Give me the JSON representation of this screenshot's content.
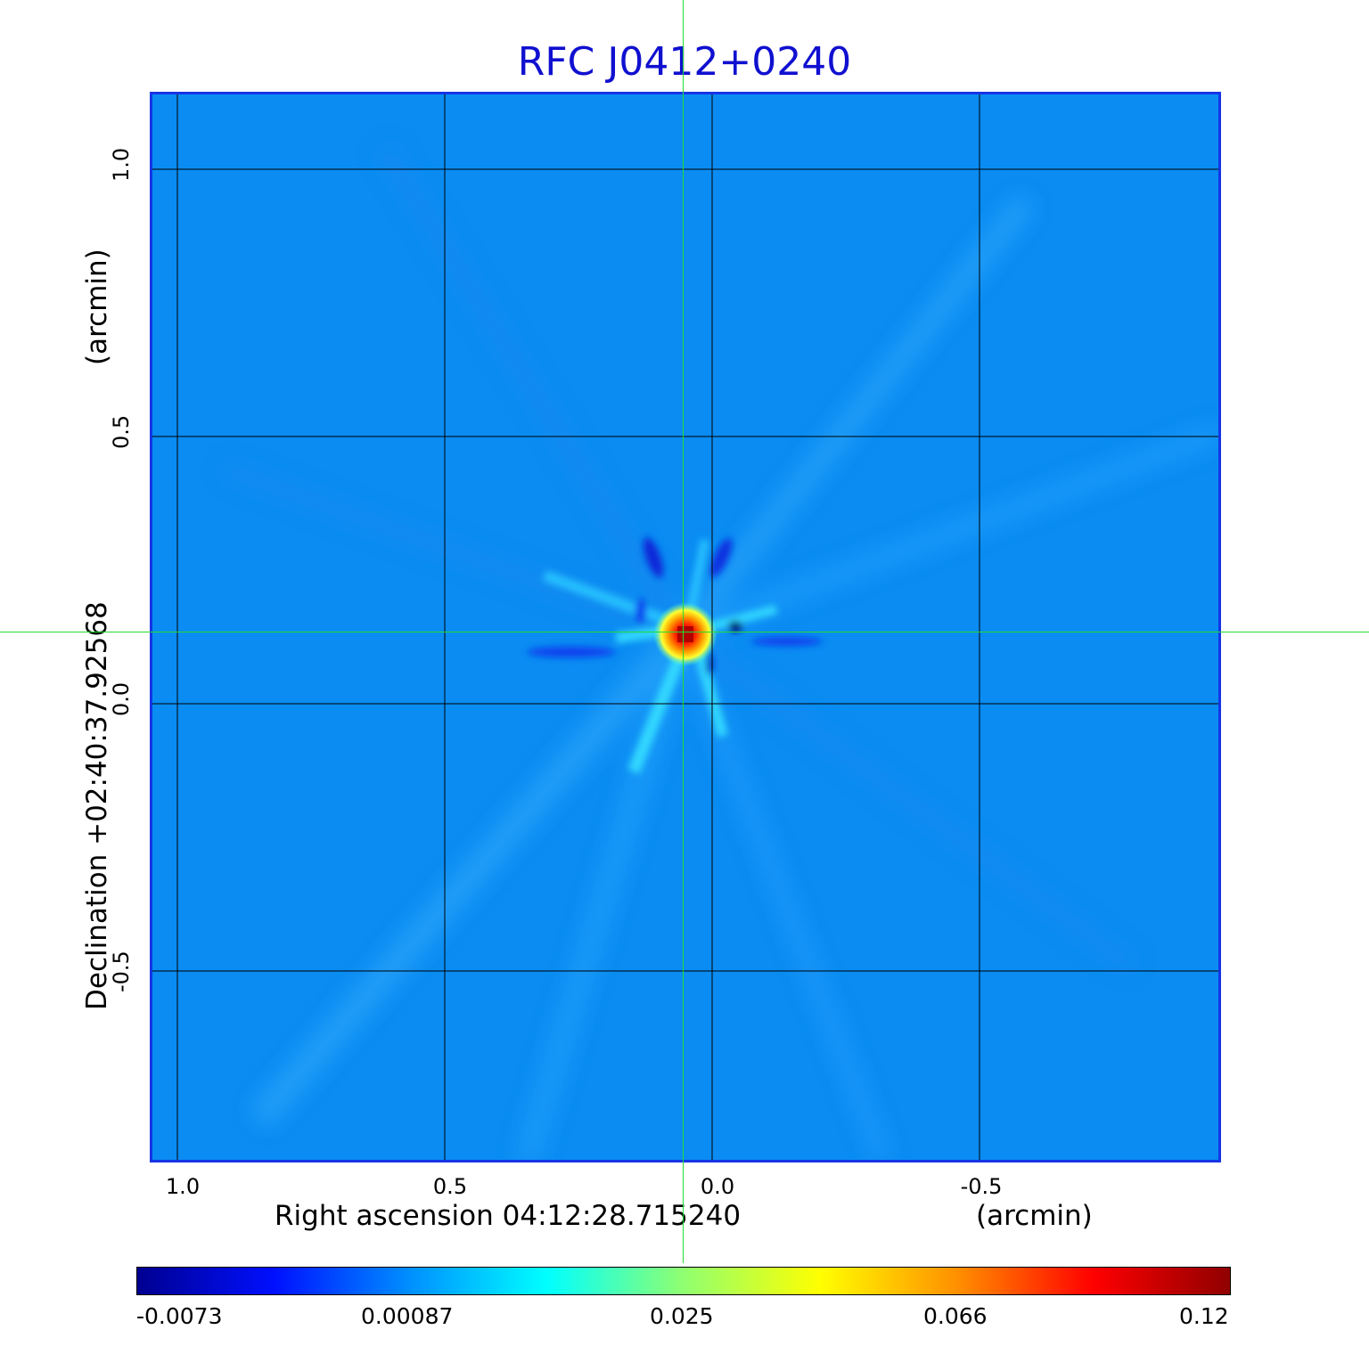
{
  "title": "RFC J0412+0240",
  "x_axis": {
    "label": "Right ascension  04:12:28.715240",
    "unit": "(arcmin)",
    "ticks": [
      "1.0",
      "0.5",
      "0.0",
      "-0.5"
    ]
  },
  "y_axis": {
    "label": "Declination  +02:40:37.92568",
    "unit": "(arcmin)",
    "ticks": [
      "1.0",
      "0.5",
      "0.0",
      "-0.5"
    ]
  },
  "colorbar": {
    "ticks": [
      "-0.0073",
      "0.00087",
      "0.025",
      "0.066",
      "0.12"
    ],
    "colors": [
      "#000090",
      "#0010ff",
      "#0090ff",
      "#00ffff",
      "#90ff70",
      "#ffff00",
      "#ff9000",
      "#ff0000",
      "#900000"
    ]
  },
  "colors": {
    "title": "#1010d0",
    "image_background": "#0a8cf2",
    "frame": "#1535e6",
    "grid": "#000000",
    "crosshair": "#22dd33"
  }
}
